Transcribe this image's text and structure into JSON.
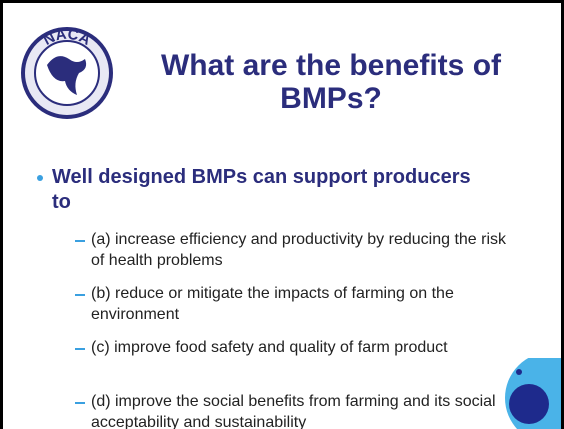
{
  "logo": {
    "text": "NACA"
  },
  "title": {
    "line1": "What are the benefits of",
    "line2": "BMPs?"
  },
  "bullet": {
    "text": "Well designed BMPs can support producers to",
    "subitems": [
      "(a) increase efficiency and productivity by reducing the risk of health problems",
      "(b) reduce or mitigate the impacts of farming on the environment",
      "(c) improve food safety and quality of farm product",
      "(d) improve the social benefits from farming and its social acceptability and sustainability"
    ]
  }
}
